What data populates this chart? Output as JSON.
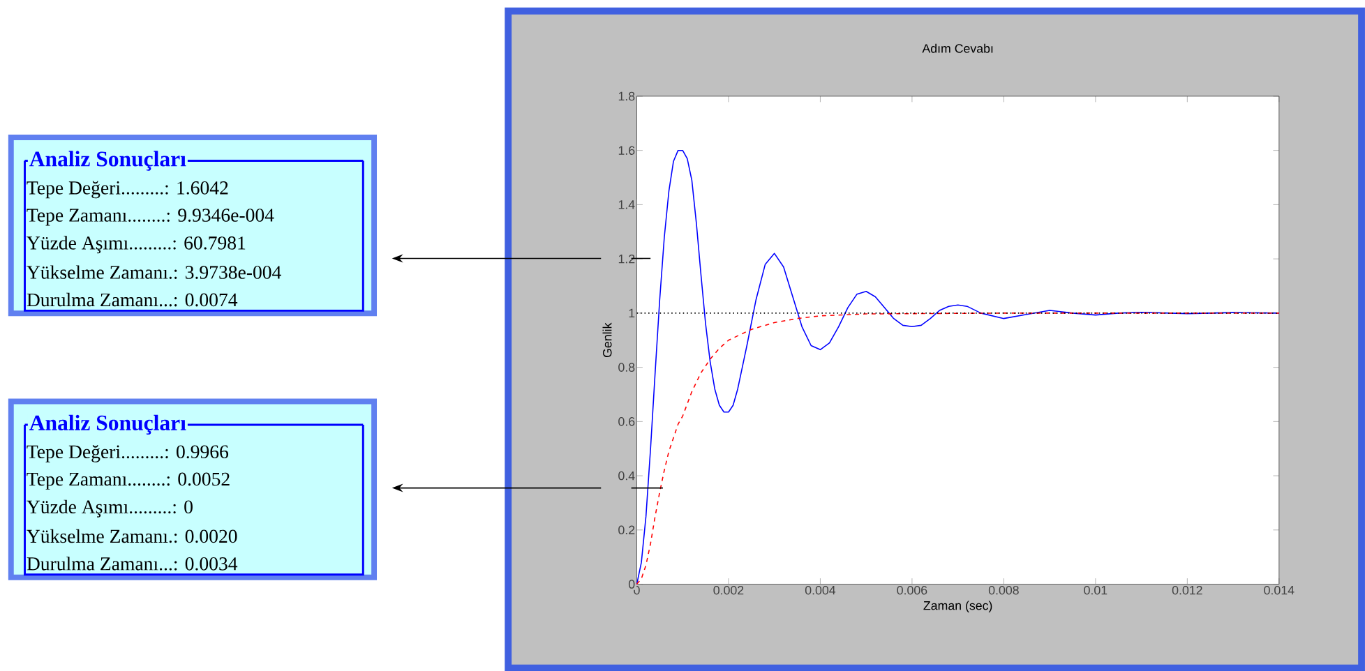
{
  "chart_data": {
    "type": "line",
    "title": "Adım Cevabı",
    "xlabel": "Zaman (sec)",
    "ylabel": "Genlik",
    "xlim": [
      0,
      0.014
    ],
    "xticks": [
      0,
      0.002,
      0.004,
      0.006,
      0.008,
      0.01,
      0.012,
      0.014
    ],
    "ylim": [
      0,
      1.8
    ],
    "yticks": [
      0,
      0.2,
      0.4,
      0.6,
      0.8,
      1,
      1.2,
      1.4,
      1.6,
      1.8
    ],
    "grid": false,
    "series": [
      {
        "color": "#0000ff",
        "line_style": "solid",
        "x": [
          0,
          0.0001,
          0.0002,
          0.0003,
          0.0004,
          0.0005,
          0.0006,
          0.0007,
          0.0008,
          0.0009,
          0.001,
          0.0011,
          0.0012,
          0.0013,
          0.0014,
          0.0015,
          0.0016,
          0.0017,
          0.0018,
          0.0019,
          0.002,
          0.0021,
          0.0022,
          0.0024,
          0.0026,
          0.0028,
          0.003,
          0.0032,
          0.0034,
          0.0036,
          0.0038,
          0.004,
          0.0042,
          0.0044,
          0.0046,
          0.0048,
          0.005,
          0.0052,
          0.0054,
          0.0056,
          0.0058,
          0.006,
          0.0062,
          0.0064,
          0.0066,
          0.0068,
          0.007,
          0.0072,
          0.0075,
          0.008,
          0.0085,
          0.009,
          0.0095,
          0.01,
          0.0105,
          0.011,
          0.012,
          0.013,
          0.014
        ],
        "values": [
          0,
          0.08,
          0.25,
          0.5,
          0.78,
          1.05,
          1.28,
          1.45,
          1.56,
          1.6,
          1.6,
          1.57,
          1.49,
          1.33,
          1.14,
          0.96,
          0.82,
          0.72,
          0.66,
          0.635,
          0.635,
          0.66,
          0.72,
          0.88,
          1.05,
          1.18,
          1.22,
          1.17,
          1.06,
          0.95,
          0.88,
          0.865,
          0.89,
          0.95,
          1.02,
          1.07,
          1.08,
          1.06,
          1.02,
          0.98,
          0.955,
          0.95,
          0.955,
          0.98,
          1.01,
          1.025,
          1.03,
          1.025,
          1.0,
          0.98,
          0.995,
          1.01,
          1.0,
          0.993,
          1.0,
          1.003,
          0.998,
          1.002,
          1.0
        ]
      },
      {
        "color": "#ff0000",
        "line_style": "dashed",
        "x": [
          0,
          0.0001,
          0.0002,
          0.0003,
          0.0004,
          0.0005,
          0.0006,
          0.0007,
          0.0008,
          0.0009,
          0.001,
          0.0012,
          0.0014,
          0.0016,
          0.0018,
          0.002,
          0.0025,
          0.003,
          0.0035,
          0.004,
          0.005,
          0.0052,
          0.006,
          0.008,
          0.014
        ],
        "values": [
          0,
          0.02,
          0.07,
          0.15,
          0.25,
          0.34,
          0.42,
          0.49,
          0.54,
          0.59,
          0.62,
          0.71,
          0.78,
          0.83,
          0.87,
          0.9,
          0.94,
          0.965,
          0.98,
          0.99,
          0.997,
          0.997,
          0.998,
          1.0,
          1.0
        ]
      }
    ],
    "ref_lines": [
      {
        "axis": "y",
        "value": 1,
        "color": "#000000",
        "line_style": "dotted"
      }
    ],
    "annotations": [
      "Analiz Sonuçları",
      "Tepe Değeri.........: 1.6042",
      "Tepe Zamanı........: 9.9346e-004",
      "Yüzde Aşımı.........: 60.7981",
      "Yükselme Zamanı.: 3.9738e-004",
      "Durulma Zamanı...: 0.0074",
      "Analiz Sonuçları",
      "Tepe Değeri.........: 0.9966",
      "Tepe Zamanı........: 0.0052",
      "Yüzde Aşımı.........: 0",
      "Yükselme Zamanı.: 0.0020",
      "Durulma Zamanı...: 0.0034"
    ]
  }
}
